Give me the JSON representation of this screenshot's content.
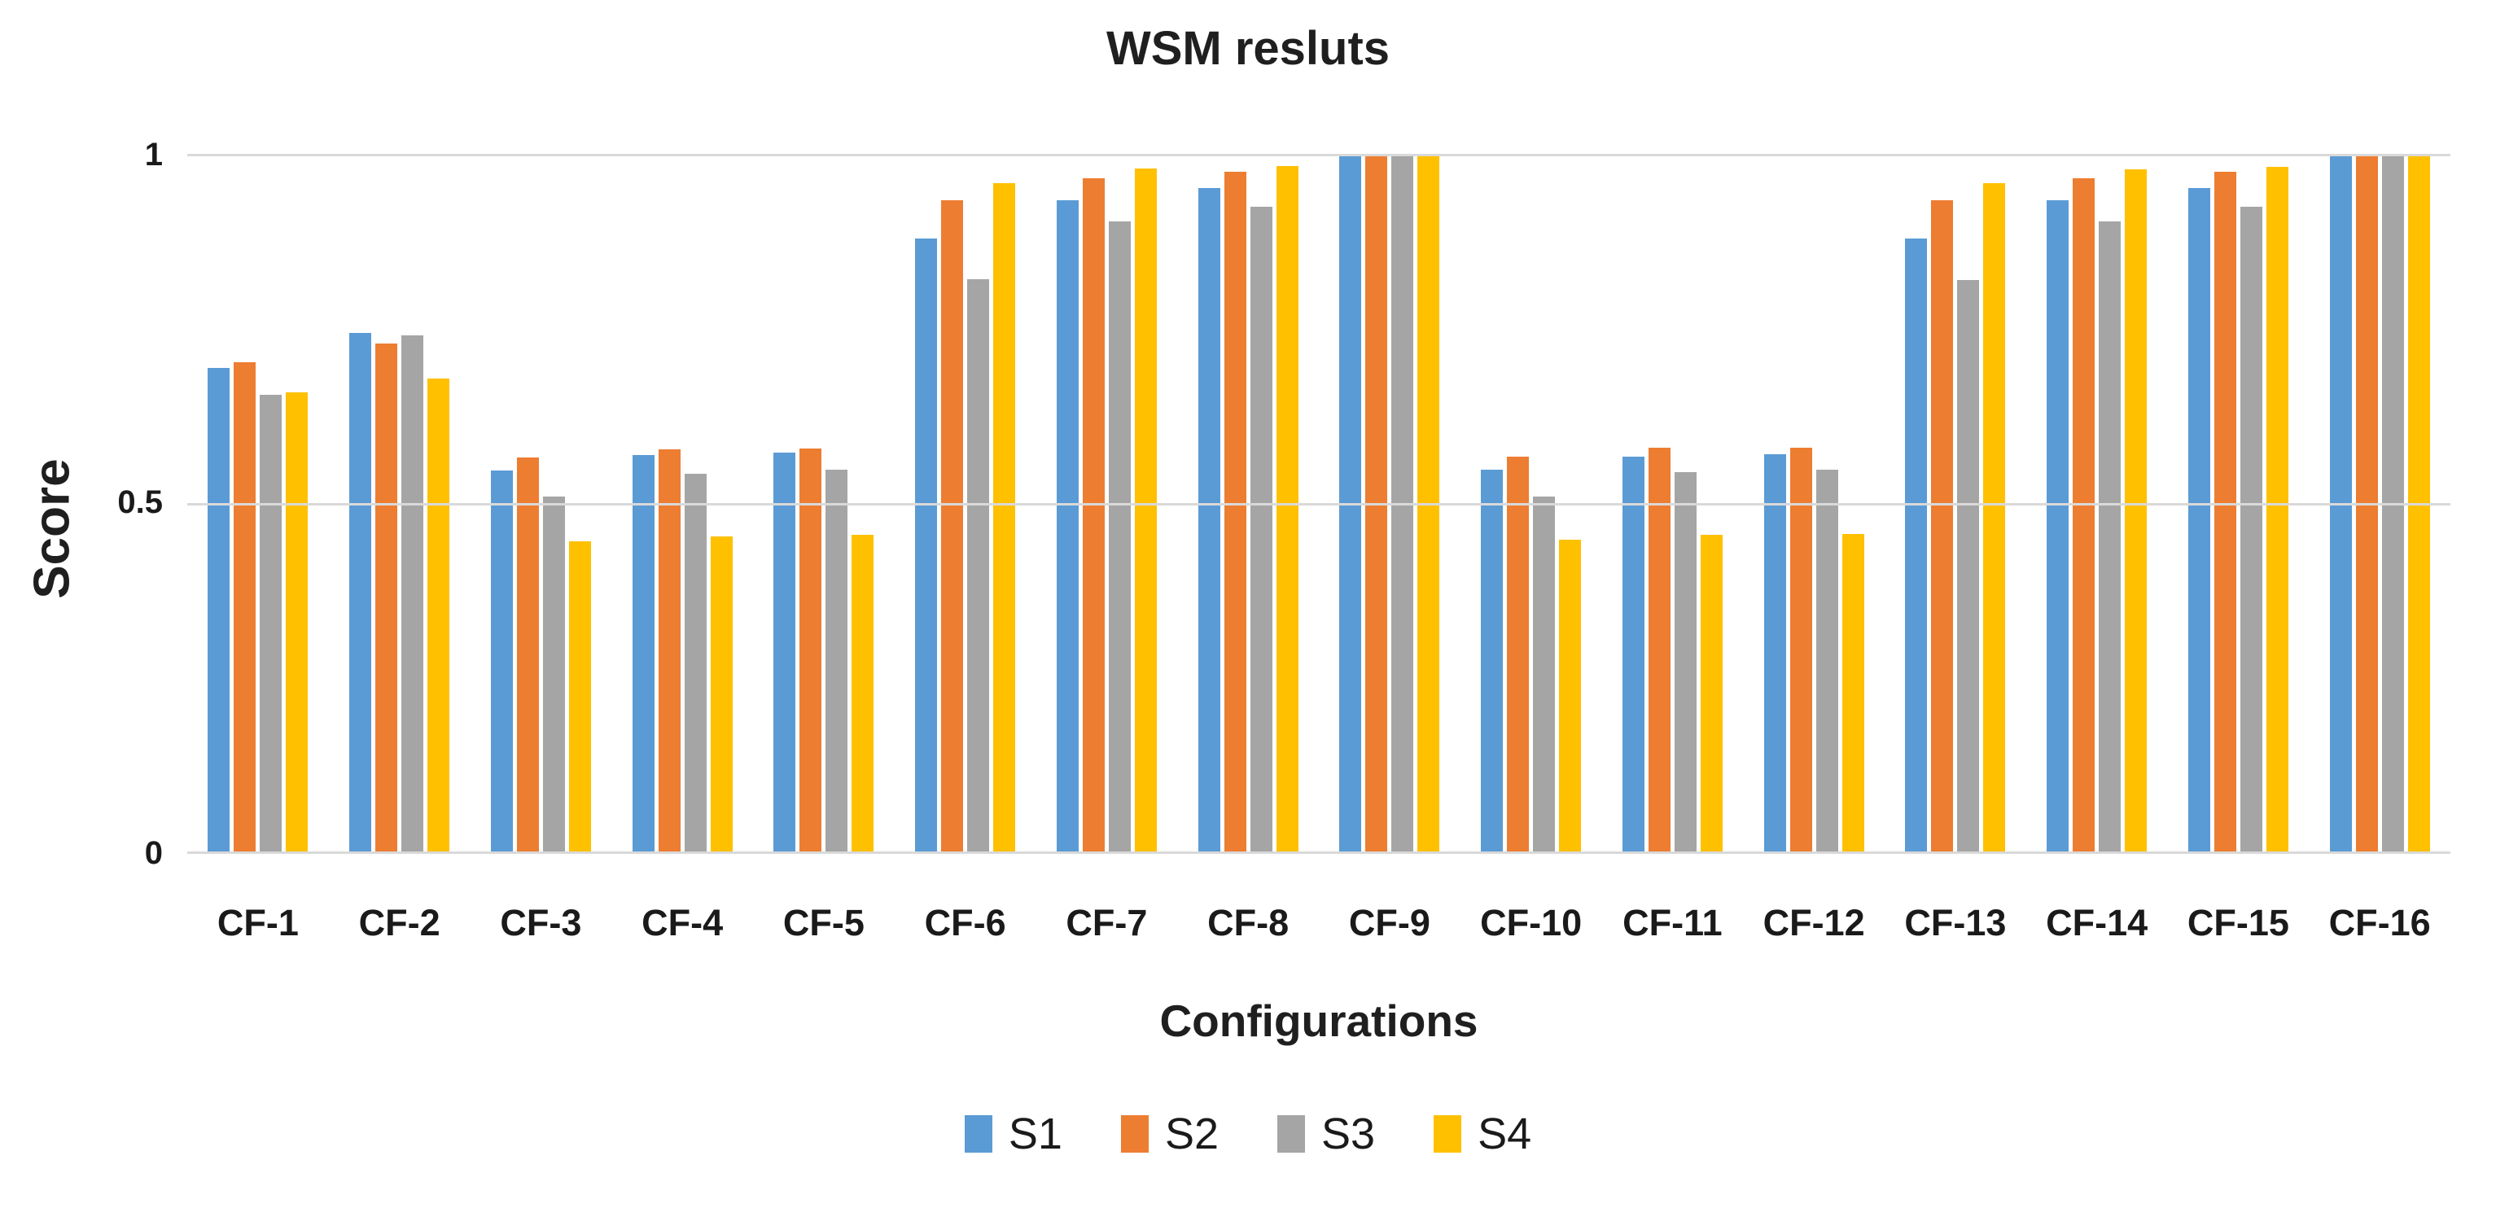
{
  "title": "WSM resluts",
  "y_axis": {
    "title": "Score",
    "ticks": {
      "top": "1",
      "mid": "0.5",
      "bottom": "0"
    }
  },
  "x_axis": {
    "title": "Configurations"
  },
  "colors": {
    "s1": "#5B9BD5",
    "s2": "#ED7D31",
    "s3": "#A5A5A5",
    "s4": "#FFC000",
    "gridline": "#D9D9D9"
  },
  "chart_data": {
    "type": "bar",
    "title": "WSM resluts",
    "xlabel": "Configurations",
    "ylabel": "Score",
    "ylim": [
      0,
      1
    ],
    "yticks": [
      0,
      0.5,
      1
    ],
    "grid": true,
    "legend_position": "bottom",
    "categories": [
      "CF-1",
      "CF-2",
      "CF-3",
      "CF-4",
      "CF-5",
      "CF-6",
      "CF-7",
      "CF-8",
      "CF-9",
      "CF-10",
      "CF-11",
      "CF-12",
      "CF-13",
      "CF-14",
      "CF-15",
      "CF-16"
    ],
    "series": [
      {
        "name": "S1",
        "color": "#5B9BD5",
        "values": [
          0.695,
          0.745,
          0.548,
          0.57,
          0.573,
          0.88,
          0.935,
          0.952,
          1.0,
          0.549,
          0.568,
          0.571,
          0.88,
          0.935,
          0.952,
          1.0
        ]
      },
      {
        "name": "S2",
        "color": "#ED7D31",
        "values": [
          0.703,
          0.73,
          0.566,
          0.578,
          0.579,
          0.935,
          0.966,
          0.975,
          1.0,
          0.568,
          0.58,
          0.58,
          0.935,
          0.966,
          0.975,
          1.0
        ]
      },
      {
        "name": "S3",
        "color": "#A5A5A5",
        "values": [
          0.656,
          0.741,
          0.51,
          0.543,
          0.549,
          0.822,
          0.904,
          0.926,
          1.0,
          0.511,
          0.546,
          0.549,
          0.82,
          0.904,
          0.926,
          1.0
        ]
      },
      {
        "name": "S4",
        "color": "#FFC000",
        "values": [
          0.66,
          0.68,
          0.446,
          0.453,
          0.456,
          0.959,
          0.98,
          0.984,
          1.0,
          0.449,
          0.456,
          0.457,
          0.959,
          0.979,
          0.983,
          1.0
        ]
      }
    ]
  }
}
